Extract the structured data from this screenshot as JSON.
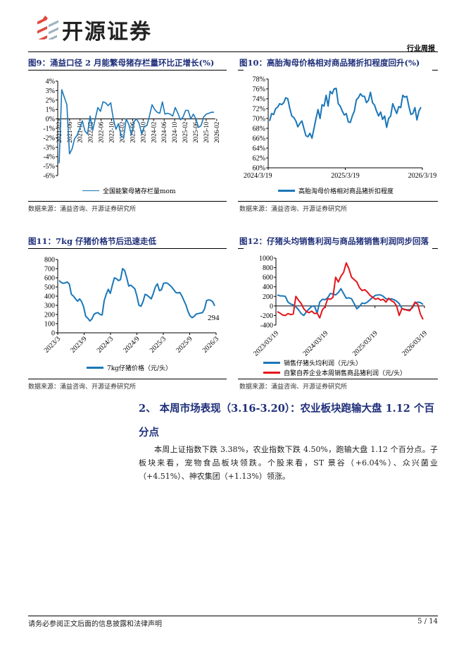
{
  "header": {
    "brand": "开源证券",
    "report_type": "行业周报"
  },
  "colors": {
    "blue": "#1a77b8",
    "red": "#e4161b",
    "title": "#1f2f7a"
  },
  "figures": [
    {
      "title": "图9：涌益口径 2 月能繁母猪存栏量环比正增长(%)",
      "source": "数据来源：涌益咨询、开源证券研究所"
    },
    {
      "title": "图10：高胎淘母价格相对商品猪折扣程度回升(%)",
      "source": "数据来源：涌益咨询、开源证券研究所"
    },
    {
      "title": "图11：7kg 仔猪价格节后迅速走低",
      "source": "数据来源：涌益咨询、开源证券研究所"
    },
    {
      "title": "图12：仔猪头均销售利润与商品猪销售利润同步回落",
      "source": "数据来源：涌益咨询、开源证券研究所"
    }
  ],
  "chart_data": [
    {
      "type": "line",
      "title": "涌益口径 2 月能繁母猪存栏量环比正增长(%)",
      "ylim": [
        -6,
        4
      ],
      "yticks": [
        "-6%",
        "-5%",
        "-4%",
        "-3%",
        "-2%",
        "-1%",
        "0%",
        "1%",
        "2%",
        "3%",
        "4%"
      ],
      "xticks": [
        "2021-02",
        "2021-06",
        "2021-10",
        "2022-02",
        "2022-06",
        "2022-10",
        "2023-02",
        "2023-06",
        "2023-10",
        "2024-02",
        "2024-06",
        "2024-10",
        "2025-02",
        "2025-06",
        "2025-10",
        "2026-02"
      ],
      "series": [
        {
          "name": "全国能繁母猪存栏量mom",
          "color": "#1a77b8",
          "values": [
            -4.7,
            3.1,
            2.3,
            1.5,
            -3.7,
            -3.2,
            -2.1,
            -1.7,
            -1.0,
            -0.2,
            -1.3,
            -1.6,
            0.3,
            -1.2,
            0.0,
            1.2,
            0.8,
            1.8,
            1.7,
            1.4,
            1.7,
            0.0,
            -1.1,
            -0.5,
            -1.8,
            -2.0,
            0.0,
            -0.6,
            -1.7,
            -0.3,
            0.0,
            -0.5,
            -1.6,
            -0.8,
            -0.7,
            0.3,
            1.5,
            1.0,
            0.7,
            0.6,
            1.8,
            0.5,
            0.6,
            0.5,
            0.3,
            1.2,
            0.6,
            -0.1,
            0.2,
            0.9,
            0.9,
            0.0,
            0.5,
            0.0,
            -0.9,
            -0.7,
            0.2,
            0.5,
            0.6,
            0.7,
            0.7
          ]
        }
      ]
    },
    {
      "type": "line",
      "title": "高胎淘母价格相对商品猪折扣程度回升(%)",
      "ylim": [
        60,
        78
      ],
      "yticks": [
        "60%",
        "62%",
        "64%",
        "66%",
        "68%",
        "70%",
        "72%",
        "74%",
        "76%",
        "78%"
      ],
      "xticks": [
        "2024/3/19",
        "2025/3/19",
        "2026/3/19"
      ],
      "series": [
        {
          "name": "高胎淘母价格相对商品猪折扣程度",
          "color": "#1a77b8",
          "values": [
            69.5,
            71,
            70.8,
            72,
            72.3,
            73,
            72.8,
            73.2,
            74.2,
            74,
            72,
            70.5,
            70.2,
            69.5,
            68.3,
            69,
            69.5,
            68,
            66.5,
            66.3,
            67,
            66,
            68,
            70,
            71.8,
            70,
            72.8,
            72.5,
            74.7,
            72.5,
            75.5,
            75,
            76,
            76.1,
            73,
            72.5,
            71.5,
            70.7,
            71,
            69.3,
            69.2,
            70.5,
            71.5,
            73.8,
            74.2,
            75,
            74.5,
            74.5,
            73.2,
            73.7,
            75.3,
            73.2,
            72.7,
            71.5,
            70.5,
            71.3,
            69.8,
            70.5,
            68.2,
            70,
            70.5,
            73,
            72,
            71,
            72.4,
            72.2,
            74.7,
            74.3,
            74.5,
            72.5,
            70.8,
            71,
            72.2,
            69.7,
            71.5,
            72.3
          ]
        }
      ]
    },
    {
      "type": "line",
      "title": "7kg 仔猪价格节后迅速走低",
      "ylim": [
        0,
        800
      ],
      "yticks": [
        "0",
        "100",
        "200",
        "300",
        "400",
        "500",
        "600",
        "700",
        "800"
      ],
      "xticks": [
        "2023/3",
        "2023/9",
        "2024/3",
        "2024/9",
        "2025/3",
        "2025/9",
        "2026/3"
      ],
      "annotation": "294",
      "series": [
        {
          "name": "7kg仔猪价格（元/头）",
          "color": "#1a77b8",
          "values": [
            570,
            550,
            540,
            545,
            555,
            530,
            420,
            400,
            370,
            345,
            370,
            340,
            280,
            180,
            160,
            130,
            150,
            200,
            215,
            220,
            200,
            195,
            350,
            420,
            475,
            430,
            520,
            600,
            590,
            570,
            580,
            700,
            680,
            600,
            510,
            520,
            500,
            480,
            400,
            300,
            290,
            340,
            420,
            410,
            390,
            370,
            430,
            500,
            535,
            460,
            470,
            540,
            545,
            540,
            520,
            500,
            470,
            440,
            435,
            440,
            400,
            350,
            300,
            230,
            185,
            165,
            180,
            205,
            210,
            215,
            220,
            260,
            350,
            360,
            355,
            340,
            294
          ]
        }
      ]
    },
    {
      "type": "line",
      "title": "仔猪头均销售利润与商品猪销售利润同步回落",
      "ylim": [
        -400,
        1000
      ],
      "yticks": [
        "-400",
        "-200",
        "0",
        "200",
        "400",
        "600",
        "800",
        "1000"
      ],
      "xticks": [
        "2023/03/19",
        "2024/03/19",
        "2025/03/19",
        "2026/03/19"
      ],
      "series": [
        {
          "name": "销售仔猪头均利润（元/头）",
          "color": "#1a77b8",
          "values": [
            230,
            210,
            210,
            200,
            80,
            40,
            20,
            -20,
            -80,
            -160,
            -200,
            -120,
            -60,
            -10,
            0,
            -150,
            80,
            140,
            130,
            170,
            260,
            250,
            230,
            280,
            360,
            260,
            160,
            170,
            150,
            50,
            -60,
            -10,
            60,
            50,
            80,
            130,
            180,
            220,
            230,
            230,
            200,
            150,
            140,
            150,
            130,
            100,
            50,
            -50,
            -80,
            -80,
            -80,
            -40,
            60,
            80,
            70,
            30
          ]
        },
        {
          "name": "自繁自养企业本周销售商品猪利润（元/头）",
          "color": "#e4161b",
          "values": [
            -120,
            -150,
            -190,
            -200,
            -160,
            -180,
            -170,
            200,
            120,
            50,
            -60,
            -120,
            -140,
            -110,
            -160,
            -150,
            -250,
            -80,
            -20,
            150,
            140,
            180,
            600,
            500,
            620,
            700,
            900,
            780,
            600,
            550,
            500,
            380,
            320,
            340,
            290,
            220,
            180,
            140,
            160,
            120,
            140,
            80,
            160,
            110,
            80,
            0,
            -200,
            -60,
            -70,
            -90,
            -100,
            -20,
            80,
            30,
            -170,
            -280
          ]
        }
      ]
    }
  ],
  "section": {
    "heading_line1": "2、 本周市场表现（3.16-3.20）：农业板块跑输大盘 1.12 个百",
    "heading_line2": "分点",
    "paragraph": "本周上证指数下跌 3.38%，农业指数下跌 4.50%，跑输大盘 1.12 个百分点。子板块来看，宠物食品板块领跌。个股来看，ST 景谷（+6.04%）、众兴菌业（+4.51%）、神农集团（+1.13%）领涨。"
  },
  "footer": {
    "disclaimer": "请务必参阅正文后面的信息披露和法律声明",
    "page": "5 / 14"
  }
}
